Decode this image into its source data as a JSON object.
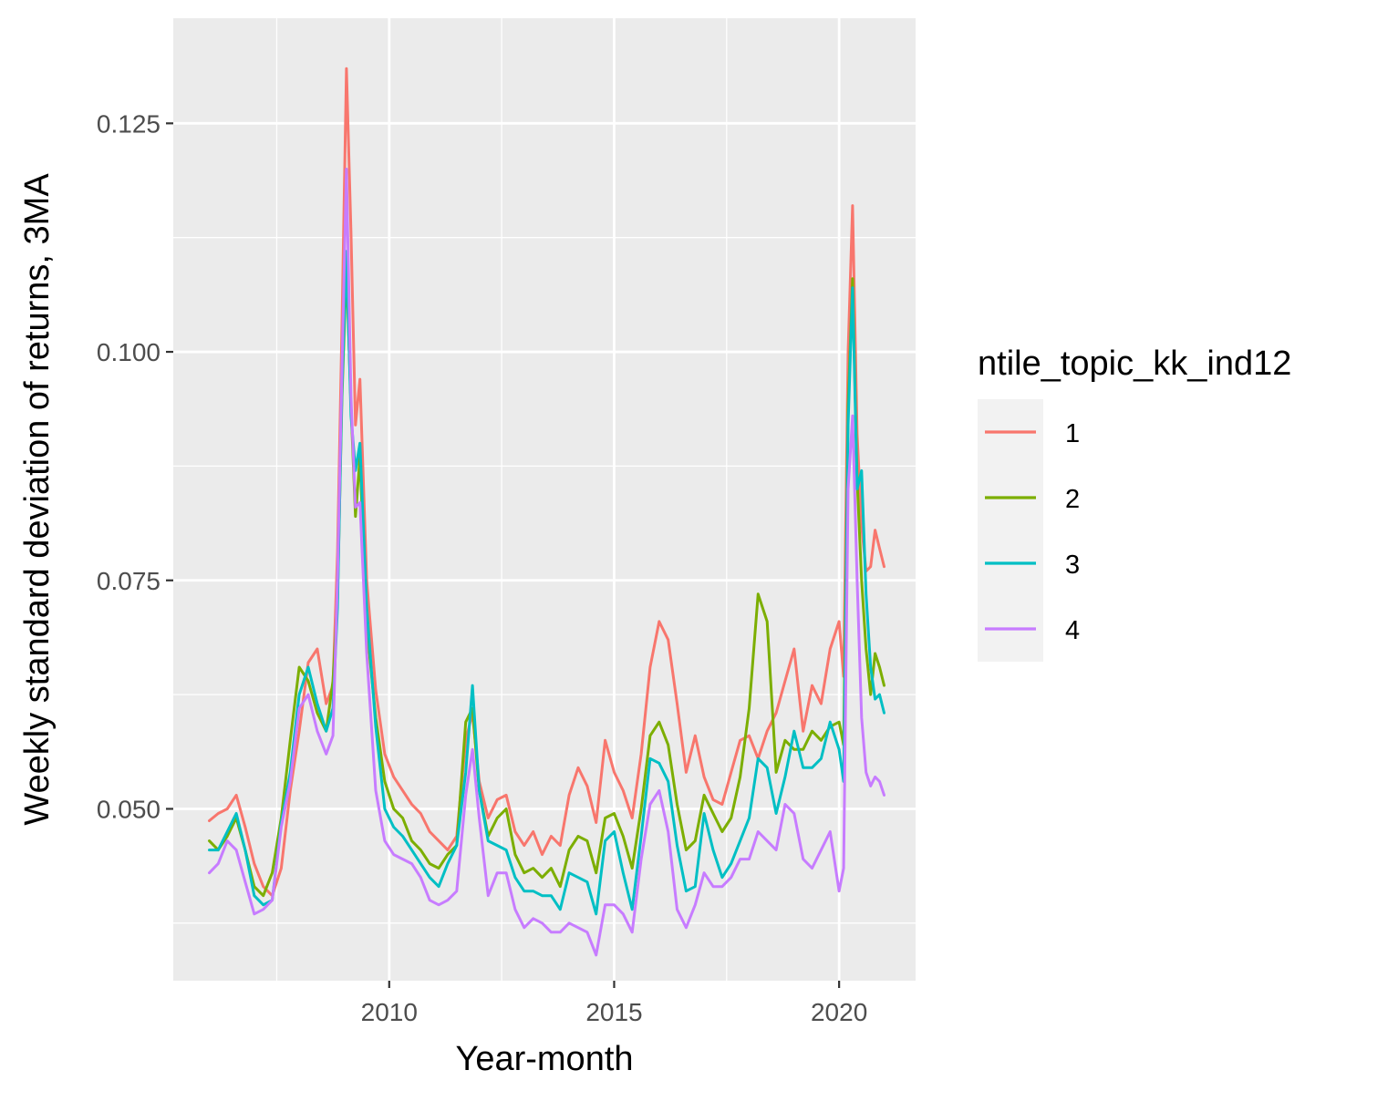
{
  "chart_data": {
    "type": "line",
    "xlabel": "Year-month",
    "ylabel": "Weekly standard deviation of returns, 3MA",
    "xlim": [
      2005.2,
      2021.7
    ],
    "ylim": [
      0.0312,
      0.1365
    ],
    "x_ticks": [
      2010,
      2015,
      2020
    ],
    "x_tick_labels": [
      "2010",
      "2015",
      "2020"
    ],
    "y_ticks": [
      0.05,
      0.075,
      0.1,
      0.125
    ],
    "y_tick_labels": [
      "0.050",
      "0.075",
      "0.100",
      "0.125"
    ],
    "grid": true,
    "legend": {
      "title": "ntile_topic_kk_ind12",
      "position": "right"
    },
    "series": [
      {
        "name": "1",
        "color": "#F8766D",
        "x": [
          2006.0,
          2006.2,
          2006.4,
          2006.6,
          2006.8,
          2007.0,
          2007.2,
          2007.4,
          2007.6,
          2007.8,
          2008.0,
          2008.2,
          2008.4,
          2008.6,
          2008.75,
          2008.85,
          2008.95,
          2009.05,
          2009.15,
          2009.25,
          2009.35,
          2009.5,
          2009.7,
          2009.9,
          2010.1,
          2010.3,
          2010.5,
          2010.7,
          2010.9,
          2011.1,
          2011.3,
          2011.5,
          2011.7,
          2011.85,
          2012.0,
          2012.2,
          2012.4,
          2012.6,
          2012.8,
          2013.0,
          2013.2,
          2013.4,
          2013.6,
          2013.8,
          2014.0,
          2014.2,
          2014.4,
          2014.6,
          2014.8,
          2015.0,
          2015.2,
          2015.4,
          2015.6,
          2015.8,
          2016.0,
          2016.2,
          2016.4,
          2016.6,
          2016.8,
          2017.0,
          2017.2,
          2017.4,
          2017.6,
          2017.8,
          2018.0,
          2018.2,
          2018.4,
          2018.6,
          2018.8,
          2019.0,
          2019.2,
          2019.4,
          2019.6,
          2019.8,
          2020.0,
          2020.1,
          2020.2,
          2020.3,
          2020.4,
          2020.5,
          2020.6,
          2020.7,
          2020.8,
          2020.9,
          2021.0
        ],
        "values": [
          0.0487,
          0.0495,
          0.05,
          0.0515,
          0.048,
          0.044,
          0.0415,
          0.0405,
          0.0435,
          0.052,
          0.0585,
          0.066,
          0.0675,
          0.0615,
          0.0635,
          0.078,
          0.103,
          0.131,
          0.113,
          0.092,
          0.097,
          0.075,
          0.063,
          0.056,
          0.0535,
          0.052,
          0.0505,
          0.0495,
          0.0475,
          0.0465,
          0.0455,
          0.047,
          0.0575,
          0.0605,
          0.053,
          0.049,
          0.051,
          0.0515,
          0.0475,
          0.046,
          0.0475,
          0.045,
          0.047,
          0.046,
          0.0515,
          0.0545,
          0.0525,
          0.0485,
          0.0575,
          0.054,
          0.052,
          0.049,
          0.056,
          0.0655,
          0.0705,
          0.0685,
          0.0615,
          0.054,
          0.058,
          0.0535,
          0.051,
          0.0505,
          0.054,
          0.0575,
          0.058,
          0.0555,
          0.0585,
          0.0605,
          0.064,
          0.0675,
          0.0585,
          0.0635,
          0.0615,
          0.0675,
          0.0705,
          0.0645,
          0.1,
          0.116,
          0.091,
          0.081,
          0.076,
          0.0765,
          0.0805,
          0.0785,
          0.0765
        ]
      },
      {
        "name": "2",
        "color": "#7CAE00",
        "x": [
          2006.0,
          2006.2,
          2006.4,
          2006.6,
          2006.8,
          2007.0,
          2007.2,
          2007.4,
          2007.6,
          2007.8,
          2008.0,
          2008.2,
          2008.4,
          2008.6,
          2008.75,
          2008.85,
          2008.95,
          2009.05,
          2009.15,
          2009.25,
          2009.35,
          2009.5,
          2009.7,
          2009.9,
          2010.1,
          2010.3,
          2010.5,
          2010.7,
          2010.9,
          2011.1,
          2011.3,
          2011.5,
          2011.7,
          2011.85,
          2012.0,
          2012.2,
          2012.4,
          2012.6,
          2012.8,
          2013.0,
          2013.2,
          2013.4,
          2013.6,
          2013.8,
          2014.0,
          2014.2,
          2014.4,
          2014.6,
          2014.8,
          2015.0,
          2015.2,
          2015.4,
          2015.6,
          2015.8,
          2016.0,
          2016.2,
          2016.4,
          2016.6,
          2016.8,
          2017.0,
          2017.2,
          2017.4,
          2017.6,
          2017.8,
          2018.0,
          2018.2,
          2018.4,
          2018.6,
          2018.8,
          2019.0,
          2019.2,
          2019.4,
          2019.6,
          2019.8,
          2020.0,
          2020.1,
          2020.2,
          2020.3,
          2020.4,
          2020.5,
          2020.6,
          2020.7,
          2020.8,
          2020.9,
          2021.0
        ],
        "values": [
          0.0465,
          0.0455,
          0.047,
          0.049,
          0.0455,
          0.0415,
          0.0405,
          0.043,
          0.049,
          0.0575,
          0.0655,
          0.064,
          0.0605,
          0.0585,
          0.064,
          0.073,
          0.095,
          0.1095,
          0.094,
          0.082,
          0.0885,
          0.07,
          0.06,
          0.053,
          0.05,
          0.049,
          0.0465,
          0.0455,
          0.044,
          0.0435,
          0.045,
          0.046,
          0.0595,
          0.061,
          0.052,
          0.047,
          0.049,
          0.05,
          0.045,
          0.043,
          0.0435,
          0.0425,
          0.0435,
          0.0415,
          0.0455,
          0.047,
          0.0465,
          0.043,
          0.049,
          0.0495,
          0.047,
          0.0435,
          0.05,
          0.058,
          0.0595,
          0.057,
          0.0505,
          0.0455,
          0.0465,
          0.0515,
          0.0495,
          0.0475,
          0.049,
          0.0535,
          0.061,
          0.0735,
          0.0705,
          0.054,
          0.0575,
          0.0565,
          0.0565,
          0.0585,
          0.0575,
          0.059,
          0.0595,
          0.057,
          0.094,
          0.108,
          0.086,
          0.075,
          0.0675,
          0.0625,
          0.067,
          0.0655,
          0.0635
        ]
      },
      {
        "name": "3",
        "color": "#00BFC4",
        "x": [
          2006.0,
          2006.2,
          2006.4,
          2006.6,
          2006.8,
          2007.0,
          2007.2,
          2007.4,
          2007.6,
          2007.8,
          2008.0,
          2008.2,
          2008.4,
          2008.6,
          2008.75,
          2008.85,
          2008.95,
          2009.05,
          2009.15,
          2009.25,
          2009.35,
          2009.5,
          2009.7,
          2009.9,
          2010.1,
          2010.3,
          2010.5,
          2010.7,
          2010.9,
          2011.1,
          2011.3,
          2011.5,
          2011.7,
          2011.85,
          2012.0,
          2012.2,
          2012.4,
          2012.6,
          2012.8,
          2013.0,
          2013.2,
          2013.4,
          2013.6,
          2013.8,
          2014.0,
          2014.2,
          2014.4,
          2014.6,
          2014.8,
          2015.0,
          2015.2,
          2015.4,
          2015.6,
          2015.8,
          2016.0,
          2016.2,
          2016.4,
          2016.6,
          2016.8,
          2017.0,
          2017.2,
          2017.4,
          2017.6,
          2017.8,
          2018.0,
          2018.2,
          2018.4,
          2018.6,
          2018.8,
          2019.0,
          2019.2,
          2019.4,
          2019.6,
          2019.8,
          2020.0,
          2020.1,
          2020.2,
          2020.3,
          2020.4,
          2020.5,
          2020.6,
          2020.7,
          2020.8,
          2020.9,
          2021.0
        ],
        "values": [
          0.0455,
          0.0455,
          0.0475,
          0.0495,
          0.0455,
          0.0405,
          0.0395,
          0.04,
          0.0485,
          0.054,
          0.0625,
          0.0655,
          0.0615,
          0.0585,
          0.061,
          0.072,
          0.096,
          0.111,
          0.093,
          0.087,
          0.09,
          0.072,
          0.059,
          0.05,
          0.048,
          0.047,
          0.0455,
          0.044,
          0.0425,
          0.0415,
          0.044,
          0.046,
          0.054,
          0.0635,
          0.052,
          0.0465,
          0.046,
          0.0455,
          0.0425,
          0.041,
          0.041,
          0.0405,
          0.0405,
          0.039,
          0.043,
          0.0425,
          0.042,
          0.0385,
          0.0465,
          0.0475,
          0.043,
          0.039,
          0.047,
          0.0555,
          0.055,
          0.053,
          0.046,
          0.041,
          0.0415,
          0.0495,
          0.0455,
          0.0425,
          0.044,
          0.0465,
          0.049,
          0.0555,
          0.0545,
          0.0495,
          0.0535,
          0.0585,
          0.0545,
          0.0545,
          0.0555,
          0.0595,
          0.0565,
          0.053,
          0.092,
          0.107,
          0.085,
          0.087,
          0.0735,
          0.0655,
          0.062,
          0.0625,
          0.0605
        ]
      },
      {
        "name": "4",
        "color": "#C77CFF",
        "x": [
          2006.0,
          2006.2,
          2006.4,
          2006.6,
          2006.8,
          2007.0,
          2007.2,
          2007.4,
          2007.6,
          2007.8,
          2008.0,
          2008.2,
          2008.4,
          2008.6,
          2008.75,
          2008.85,
          2008.95,
          2009.05,
          2009.15,
          2009.25,
          2009.35,
          2009.5,
          2009.7,
          2009.9,
          2010.1,
          2010.3,
          2010.5,
          2010.7,
          2010.9,
          2011.1,
          2011.3,
          2011.5,
          2011.7,
          2011.85,
          2012.0,
          2012.2,
          2012.4,
          2012.6,
          2012.8,
          2013.0,
          2013.2,
          2013.4,
          2013.6,
          2013.8,
          2014.0,
          2014.2,
          2014.4,
          2014.6,
          2014.8,
          2015.0,
          2015.2,
          2015.4,
          2015.6,
          2015.8,
          2016.0,
          2016.2,
          2016.4,
          2016.6,
          2016.8,
          2017.0,
          2017.2,
          2017.4,
          2017.6,
          2017.8,
          2018.0,
          2018.2,
          2018.4,
          2018.6,
          2018.8,
          2019.0,
          2019.2,
          2019.4,
          2019.6,
          2019.8,
          2020.0,
          2020.1,
          2020.2,
          2020.3,
          2020.4,
          2020.5,
          2020.6,
          2020.7,
          2020.8,
          2020.9,
          2021.0
        ],
        "values": [
          0.043,
          0.044,
          0.0465,
          0.0455,
          0.042,
          0.0385,
          0.039,
          0.04,
          0.048,
          0.053,
          0.061,
          0.0625,
          0.0585,
          0.056,
          0.058,
          0.075,
          0.098,
          0.12,
          0.095,
          0.083,
          0.0835,
          0.067,
          0.052,
          0.0465,
          0.045,
          0.0445,
          0.044,
          0.0425,
          0.04,
          0.0395,
          0.04,
          0.041,
          0.0515,
          0.0565,
          0.049,
          0.0405,
          0.043,
          0.043,
          0.039,
          0.037,
          0.038,
          0.0375,
          0.0365,
          0.0365,
          0.0375,
          0.037,
          0.0365,
          0.034,
          0.0395,
          0.0395,
          0.0385,
          0.0365,
          0.0445,
          0.0505,
          0.052,
          0.0475,
          0.039,
          0.037,
          0.0395,
          0.043,
          0.0415,
          0.0415,
          0.0425,
          0.0445,
          0.0445,
          0.0475,
          0.0465,
          0.0455,
          0.0505,
          0.0495,
          0.0445,
          0.0435,
          0.0455,
          0.0475,
          0.041,
          0.0435,
          0.085,
          0.093,
          0.075,
          0.06,
          0.054,
          0.0525,
          0.0535,
          0.053,
          0.0515
        ]
      }
    ]
  }
}
